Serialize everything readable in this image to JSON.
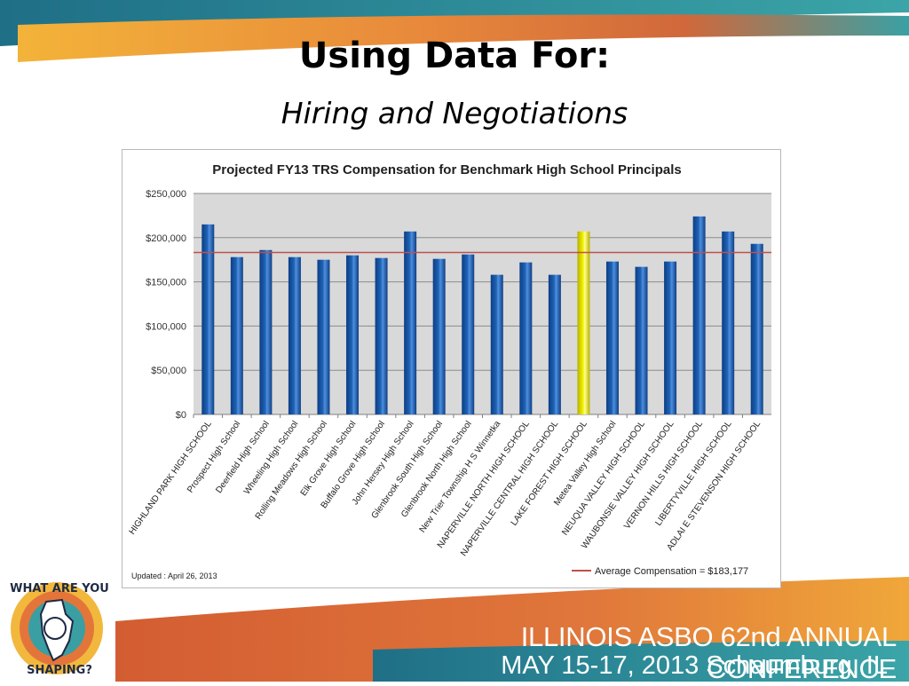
{
  "slide": {
    "title": "Using Data For:",
    "subtitle": "Hiring and Negotiations"
  },
  "footer": {
    "line1": "ILLINOIS ASBO 62nd ANNUAL CONFERENCE",
    "line2": "MAY 15-17, 2013 Schaumburg, IL"
  },
  "logo": {
    "top_text": "WHAT ARE YOU",
    "bottom_text": "SHAPING?"
  },
  "colors": {
    "bar": "#1f63b5",
    "highlight_bar": "#f2f000",
    "average_line": "#c0504d",
    "plot_background": "#d9d9d9"
  },
  "chart_data": {
    "type": "bar",
    "title": "Projected FY13 TRS Compensation for Benchmark High School Principals",
    "xlabel": "",
    "ylabel": "",
    "ylim": [
      0,
      250000
    ],
    "yticks": [
      {
        "value": 0,
        "label": "$0"
      },
      {
        "value": 50000,
        "label": "$50,000"
      },
      {
        "value": 100000,
        "label": "$100,000"
      },
      {
        "value": 150000,
        "label": "$150,000"
      },
      {
        "value": 200000,
        "label": "$200,000"
      },
      {
        "value": 250000,
        "label": "$250,000"
      }
    ],
    "grid": true,
    "categories": [
      "HIGHLAND PARK HIGH SCHOOL",
      "Prospect High School",
      "Deerfield High School",
      "Wheeling High School",
      "Rolling Meadows High School",
      "Elk Grove High School",
      "Buffalo Grove High School",
      "John Hersey High School",
      "Glenbrook South High School",
      "Glenbrook North High School",
      "New Trier Township H S Winnetka",
      "NAPERVILLE NORTH HIGH SCHOOL",
      "NAPERVILLE CENTRAL HIGH SCHOOL",
      "LAKE FOREST HIGH SCHOOL",
      "Metea Valley High School",
      "NEUQUA VALLEY HIGH SCHOOL",
      "WAUBONSIE VALLEY HIGH SCHOOL",
      "VERNON HILLS HIGH SCHOOL",
      "LIBERTYVILLE HIGH SCHOOL",
      "ADLAI E STEVENSON HIGH SCHOOL"
    ],
    "values": [
      215000,
      178000,
      186000,
      178000,
      175000,
      180000,
      177000,
      207000,
      176000,
      181000,
      158000,
      172000,
      158000,
      207000,
      173000,
      167000,
      173000,
      224000,
      207000,
      193000
    ],
    "highlight_index": 13,
    "reference_line": {
      "label": "Average Compensation = $183,177",
      "value": 183177
    },
    "legend_position": "bottom-right",
    "note": "Updated : April 26, 2013"
  }
}
